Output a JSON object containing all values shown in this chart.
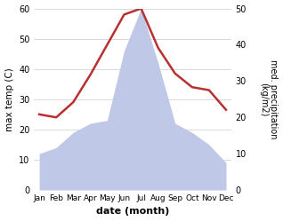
{
  "months": [
    "Jan",
    "Feb",
    "Mar",
    "Apr",
    "May",
    "Jun",
    "Jul",
    "Aug",
    "Sep",
    "Oct",
    "Nov",
    "Dec"
  ],
  "month_positions": [
    0,
    1,
    2,
    3,
    4,
    5,
    6,
    7,
    8,
    9,
    10,
    11
  ],
  "temperature": [
    25.0,
    24.0,
    29.0,
    38.0,
    48.0,
    58.0,
    60.0,
    47.0,
    38.5,
    34.0,
    33.0,
    26.5
  ],
  "precipitation": [
    12,
    14,
    19,
    22,
    23,
    46,
    60,
    42,
    22,
    19,
    15,
    9
  ],
  "temp_color": "#b83030",
  "precip_fill_color": "#c0c8e8",
  "temp_ylim": [
    0,
    60
  ],
  "precip_ylim": [
    0,
    50
  ],
  "left_ylim": [
    0,
    60
  ],
  "left_yticks": [
    0,
    10,
    20,
    30,
    40,
    50,
    60
  ],
  "right_yticks": [
    0,
    10,
    20,
    30,
    40,
    50
  ],
  "xlabel": "date (month)",
  "ylabel_left": "max temp (C)",
  "ylabel_right": "med. precipitation\n(kg/m2)",
  "grid_color": "#cccccc",
  "temp_linewidth": 1.8,
  "bg_color": "#ffffff"
}
